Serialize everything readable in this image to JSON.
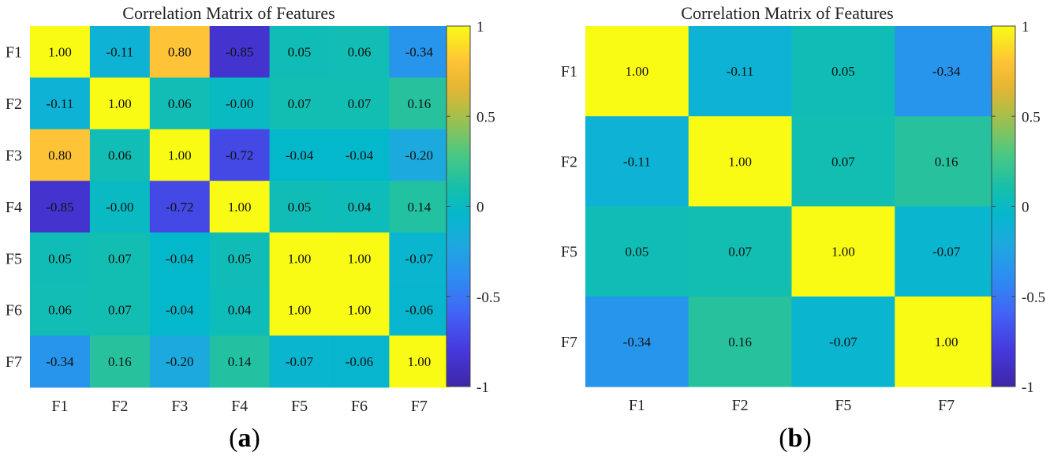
{
  "chart_data": [
    {
      "type": "heatmap",
      "title": "Correlation Matrix of Features",
      "panel_label": "a",
      "x_labels": [
        "F1",
        "F2",
        "F3",
        "F4",
        "F5",
        "F6",
        "F7"
      ],
      "y_labels": [
        "F1",
        "F2",
        "F3",
        "F4",
        "F5",
        "F6",
        "F7"
      ],
      "values": [
        [
          1.0,
          -0.11,
          0.8,
          -0.85,
          0.05,
          0.06,
          -0.34
        ],
        [
          -0.11,
          1.0,
          0.06,
          -0.0,
          0.07,
          0.07,
          0.16
        ],
        [
          0.8,
          0.06,
          1.0,
          -0.72,
          -0.04,
          -0.04,
          -0.2
        ],
        [
          -0.85,
          -0.0,
          -0.72,
          1.0,
          0.05,
          0.04,
          0.14
        ],
        [
          0.05,
          0.07,
          -0.04,
          0.05,
          1.0,
          1.0,
          -0.07
        ],
        [
          0.06,
          0.07,
          -0.04,
          0.04,
          1.0,
          1.0,
          -0.06
        ],
        [
          -0.34,
          0.16,
          -0.2,
          0.14,
          -0.07,
          -0.06,
          1.0
        ]
      ],
      "cell_text": [
        [
          "1.00",
          "-0.11",
          "0.80",
          "-0.85",
          "0.05",
          "0.06",
          "-0.34"
        ],
        [
          "-0.11",
          "1.00",
          "0.06",
          "-0.00",
          "0.07",
          "0.07",
          "0.16"
        ],
        [
          "0.80",
          "0.06",
          "1.00",
          "-0.72",
          "-0.04",
          "-0.04",
          "-0.20"
        ],
        [
          "-0.85",
          "-0.00",
          "-0.72",
          "1.00",
          "0.05",
          "0.04",
          "0.14"
        ],
        [
          "0.05",
          "0.07",
          "-0.04",
          "0.05",
          "1.00",
          "1.00",
          "-0.07"
        ],
        [
          "0.06",
          "0.07",
          "-0.04",
          "0.04",
          "1.00",
          "1.00",
          "-0.06"
        ],
        [
          "-0.34",
          "0.16",
          "-0.20",
          "0.14",
          "-0.07",
          "-0.06",
          "1.00"
        ]
      ],
      "colorbar": {
        "range": [
          -1,
          1
        ],
        "ticks": [
          "1",
          "0.5",
          "0",
          "-0.5",
          "-1"
        ],
        "colormap": "parula"
      }
    },
    {
      "type": "heatmap",
      "title": "Correlation Matrix of Features",
      "panel_label": "b",
      "x_labels": [
        "F1",
        "F2",
        "F5",
        "F7"
      ],
      "y_labels": [
        "F1",
        "F2",
        "F5",
        "F7"
      ],
      "values": [
        [
          1.0,
          -0.11,
          0.05,
          -0.34
        ],
        [
          -0.11,
          1.0,
          0.07,
          0.16
        ],
        [
          0.05,
          0.07,
          1.0,
          -0.07
        ],
        [
          -0.34,
          0.16,
          -0.07,
          1.0
        ]
      ],
      "cell_text": [
        [
          "1.00",
          "-0.11",
          "0.05",
          "-0.34"
        ],
        [
          "-0.11",
          "1.00",
          "0.07",
          "0.16"
        ],
        [
          "0.05",
          "0.07",
          "1.00",
          "-0.07"
        ],
        [
          "-0.34",
          "0.16",
          "-0.07",
          "1.00"
        ]
      ],
      "colorbar": {
        "range": [
          -1,
          1
        ],
        "ticks": [
          "1",
          "0.5",
          "0",
          "-0.5",
          "-1"
        ],
        "colormap": "parula"
      }
    }
  ]
}
